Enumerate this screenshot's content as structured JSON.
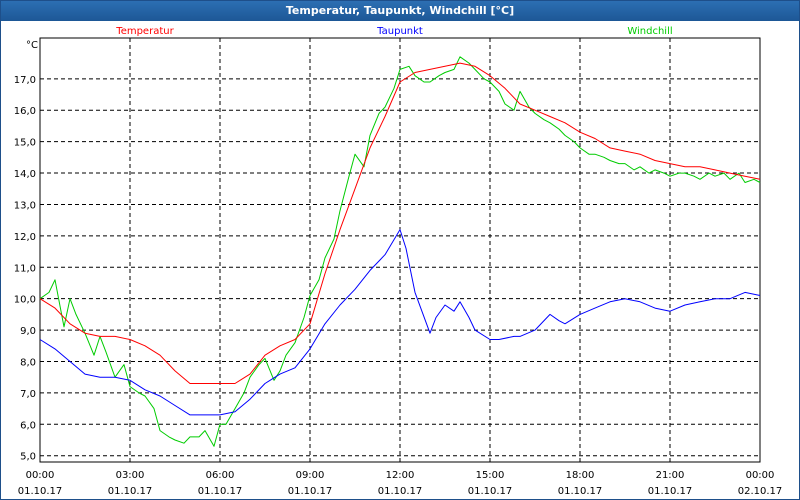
{
  "window": {
    "title": "Temperatur, Taupunkt, Windchill [°C]"
  },
  "chart_data": {
    "type": "line",
    "ylabel": "°C",
    "xlim": [
      0,
      24
    ],
    "ylim": [
      4.8,
      18.3
    ],
    "y_ticks": [
      "5,0",
      "6,0",
      "7,0",
      "8,0",
      "9,0",
      "10,0",
      "11,0",
      "12,0",
      "13,0",
      "14,0",
      "15,0",
      "16,0",
      "17,0"
    ],
    "x_ticks": [
      {
        "time": "00:00",
        "date": "01.10.17"
      },
      {
        "time": "03:00",
        "date": "01.10.17"
      },
      {
        "time": "06:00",
        "date": "01.10.17"
      },
      {
        "time": "09:00",
        "date": "01.10.17"
      },
      {
        "time": "12:00",
        "date": "01.10.17"
      },
      {
        "time": "15:00",
        "date": "01.10.17"
      },
      {
        "time": "18:00",
        "date": "01.10.17"
      },
      {
        "time": "21:00",
        "date": "01.10.17"
      },
      {
        "time": "00:00",
        "date": "02.10.17"
      }
    ],
    "grid": true,
    "legend": "top",
    "series": [
      {
        "name": "Temperatur",
        "color": "#ff0000",
        "x": [
          0,
          0.5,
          1,
          1.5,
          2,
          2.5,
          3,
          3.5,
          4,
          4.5,
          5,
          5.5,
          6,
          6.5,
          7,
          7.5,
          8,
          8.5,
          9,
          9.5,
          10,
          10.5,
          11,
          11.5,
          12,
          12.5,
          13,
          13.5,
          14,
          14.5,
          15,
          15.5,
          16,
          16.5,
          17,
          17.5,
          18,
          18.5,
          19,
          19.5,
          20,
          20.5,
          21,
          21.5,
          22,
          22.5,
          23,
          23.5,
          24
        ],
        "values": [
          10.0,
          9.7,
          9.2,
          8.9,
          8.8,
          8.8,
          8.7,
          8.5,
          8.2,
          7.7,
          7.3,
          7.3,
          7.3,
          7.3,
          7.6,
          8.2,
          8.5,
          8.7,
          9.2,
          10.8,
          12.2,
          13.5,
          14.8,
          15.8,
          16.9,
          17.2,
          17.3,
          17.4,
          17.5,
          17.4,
          17.1,
          16.7,
          16.2,
          16.0,
          15.8,
          15.6,
          15.3,
          15.1,
          14.8,
          14.7,
          14.6,
          14.4,
          14.3,
          14.2,
          14.2,
          14.1,
          14.0,
          13.9,
          13.8
        ]
      },
      {
        "name": "Taupunkt",
        "color": "#0000ff",
        "x": [
          0,
          0.5,
          1,
          1.5,
          2,
          2.5,
          3,
          3.5,
          4,
          4.5,
          5,
          5.5,
          6,
          6.5,
          7,
          7.5,
          8,
          8.5,
          9,
          9.5,
          10,
          10.5,
          11,
          11.5,
          12,
          12.2,
          12.5,
          13,
          13.2,
          13.5,
          13.8,
          14,
          14.3,
          14.5,
          15,
          15.3,
          15.8,
          16,
          16.5,
          17,
          17.3,
          17.5,
          18,
          18.5,
          19,
          19.5,
          20,
          20.5,
          21,
          21.5,
          22,
          22.5,
          23,
          23.5,
          24
        ],
        "values": [
          8.7,
          8.4,
          8.0,
          7.6,
          7.5,
          7.5,
          7.4,
          7.1,
          6.9,
          6.6,
          6.3,
          6.3,
          6.3,
          6.4,
          6.8,
          7.3,
          7.6,
          7.8,
          8.4,
          9.2,
          9.8,
          10.3,
          10.9,
          11.4,
          12.2,
          11.6,
          10.2,
          8.9,
          9.4,
          9.8,
          9.6,
          9.9,
          9.4,
          9.0,
          8.7,
          8.7,
          8.8,
          8.8,
          9.0,
          9.5,
          9.3,
          9.2,
          9.5,
          9.7,
          9.9,
          10.0,
          9.9,
          9.7,
          9.6,
          9.8,
          9.9,
          10.0,
          10.0,
          10.2,
          10.1
        ]
      },
      {
        "name": "Windchill",
        "color": "#00cc00",
        "x": [
          0,
          0.3,
          0.5,
          0.8,
          1,
          1.2,
          1.5,
          1.8,
          2,
          2.2,
          2.5,
          2.8,
          3,
          3.3,
          3.5,
          3.8,
          4,
          4.3,
          4.5,
          4.8,
          5,
          5.3,
          5.5,
          5.8,
          6,
          6.2,
          6.5,
          6.8,
          7,
          7.3,
          7.5,
          7.8,
          8,
          8.2,
          8.5,
          8.8,
          9,
          9.3,
          9.5,
          9.8,
          10,
          10.3,
          10.5,
          10.8,
          11,
          11.3,
          11.5,
          11.8,
          12,
          12.3,
          12.5,
          12.8,
          13,
          13.3,
          13.5,
          13.8,
          14,
          14.3,
          14.5,
          14.8,
          15,
          15.3,
          15.5,
          15.8,
          16,
          16.3,
          16.5,
          16.8,
          17,
          17.3,
          17.5,
          17.8,
          18,
          18.3,
          18.5,
          18.8,
          19,
          19.3,
          19.5,
          19.8,
          20,
          20.3,
          20.5,
          20.8,
          21,
          21.3,
          21.5,
          21.8,
          22,
          22.3,
          22.5,
          22.8,
          23,
          23.3,
          23.5,
          23.8,
          24
        ],
        "values": [
          10.0,
          10.2,
          10.6,
          9.1,
          10.0,
          9.5,
          8.9,
          8.2,
          8.8,
          8.3,
          7.5,
          7.9,
          7.2,
          7.0,
          6.9,
          6.5,
          5.8,
          5.6,
          5.5,
          5.4,
          5.6,
          5.6,
          5.8,
          5.3,
          6.0,
          6.0,
          6.5,
          7.0,
          7.5,
          7.9,
          8.1,
          7.4,
          7.7,
          8.2,
          8.6,
          9.4,
          10.1,
          10.6,
          11.3,
          11.9,
          12.8,
          13.9,
          14.6,
          14.2,
          15.2,
          15.9,
          16.1,
          16.7,
          17.3,
          17.4,
          17.1,
          16.9,
          16.9,
          17.1,
          17.2,
          17.3,
          17.7,
          17.5,
          17.3,
          17.0,
          16.9,
          16.6,
          16.2,
          16.0,
          16.6,
          16.1,
          15.9,
          15.7,
          15.6,
          15.4,
          15.2,
          15.0,
          14.8,
          14.6,
          14.6,
          14.5,
          14.4,
          14.3,
          14.3,
          14.1,
          14.2,
          14.0,
          14.1,
          14.0,
          13.9,
          14.0,
          14.0,
          13.9,
          13.8,
          14.0,
          13.9,
          14.0,
          13.8,
          14.0,
          13.7,
          13.8,
          13.7
        ]
      }
    ]
  }
}
